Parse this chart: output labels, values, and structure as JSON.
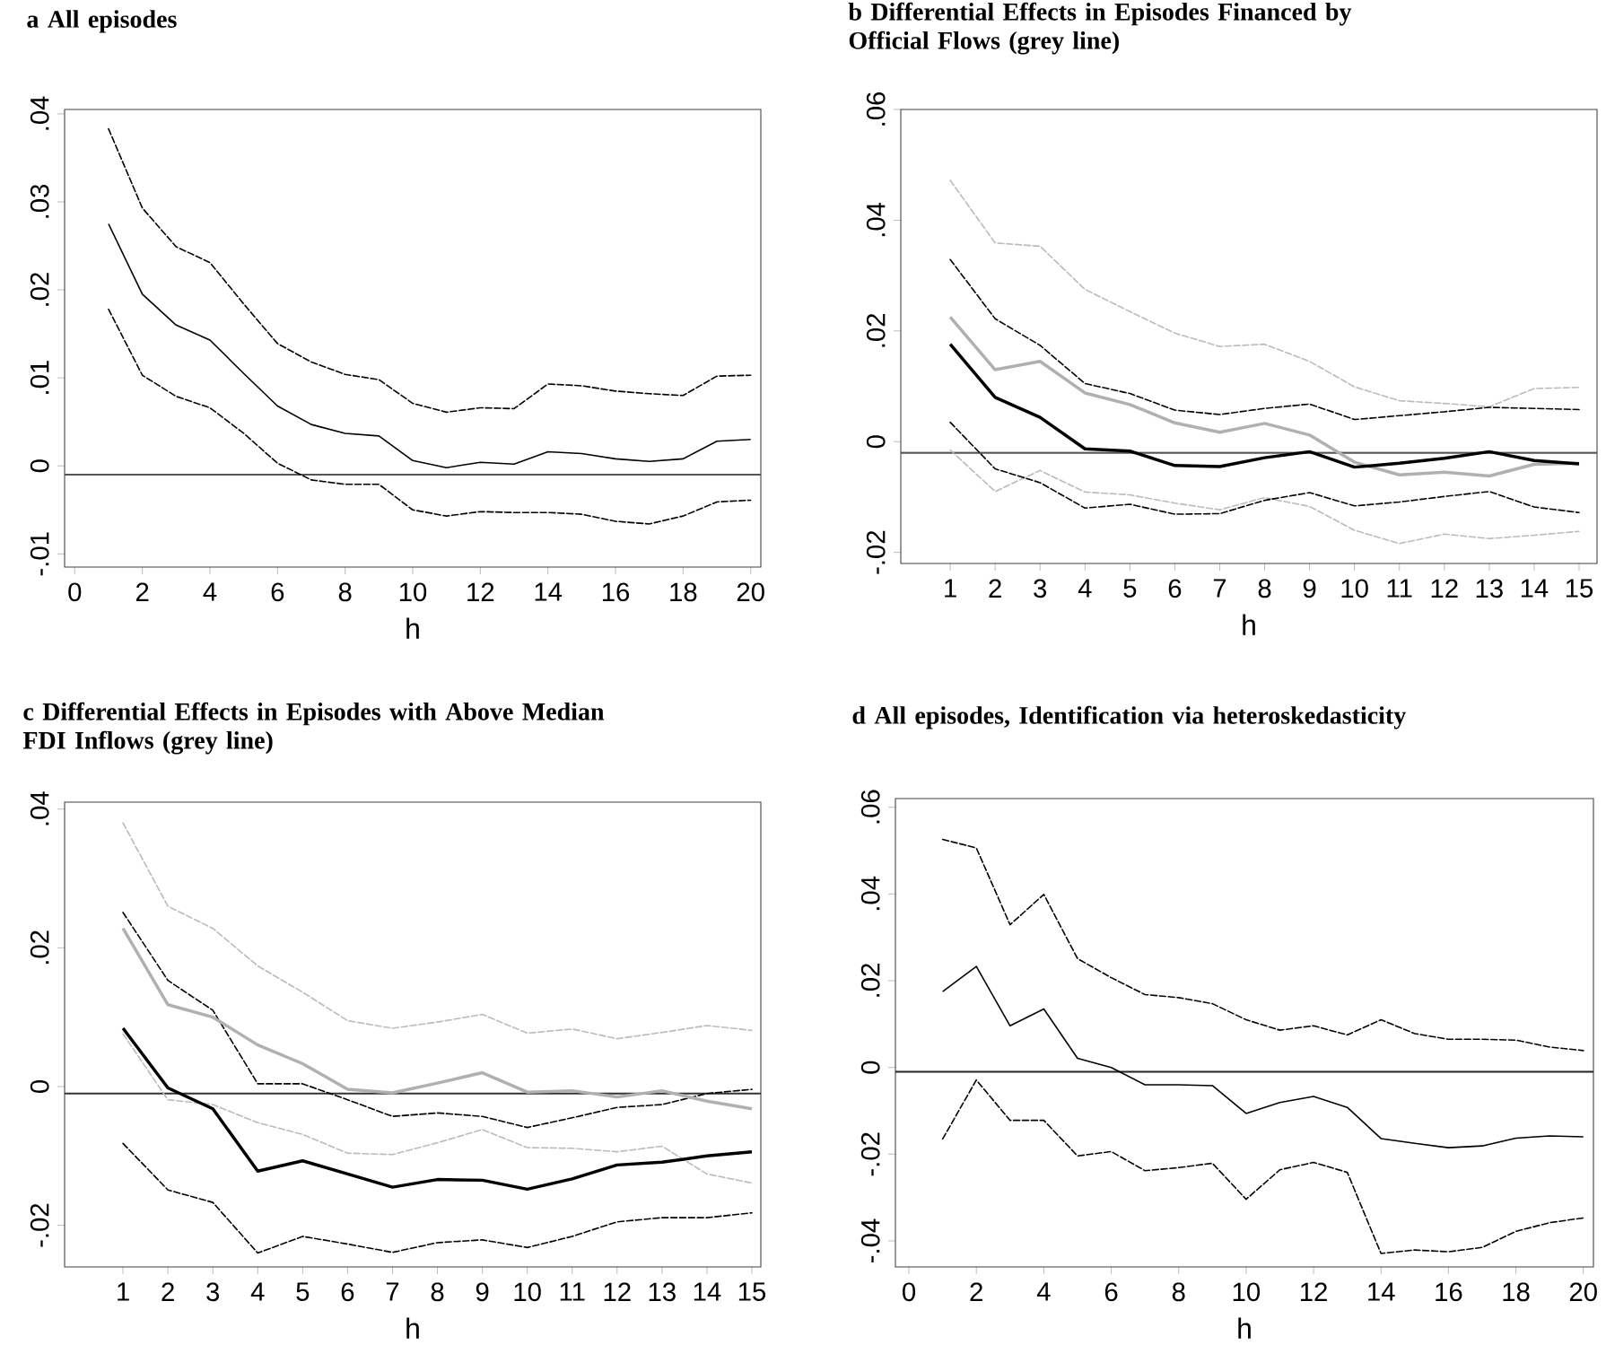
{
  "chart_data": [
    {
      "type": "line",
      "title": "a  All episodes",
      "xlabel": "h",
      "x": [
        1,
        2,
        3,
        4,
        5,
        6,
        7,
        8,
        9,
        10,
        11,
        12,
        13,
        14,
        15,
        16,
        17,
        18,
        19,
        20
      ],
      "xlim": [
        -0.3,
        20.3
      ],
      "xticks": [
        0,
        2,
        4,
        6,
        8,
        10,
        12,
        14,
        16,
        18,
        20
      ],
      "ylim": [
        -0.0115,
        0.0405
      ],
      "yticks": [
        {
          "value": -0.01,
          "label": "-.01"
        },
        {
          "value": 0,
          "label": "0"
        },
        {
          "value": 0.01,
          "label": ".01"
        },
        {
          "value": 0.02,
          "label": ".02"
        },
        {
          "value": 0.03,
          "label": ".03"
        },
        {
          "value": 0.04,
          "label": ".04"
        }
      ],
      "ref_lines": [
        {
          "axis": "y",
          "value": -0.001,
          "color": "#555555"
        }
      ],
      "series": [
        {
          "color": "#000000",
          "line_style": "dashed",
          "values": [
            0.0383,
            0.0293,
            0.0249,
            0.0231,
            0.0184,
            0.0139,
            0.0118,
            0.0104,
            0.0098,
            0.0071,
            0.0061,
            0.0066,
            0.0065,
            0.0093,
            0.0091,
            0.0085,
            0.0082,
            0.008,
            0.0102,
            0.0103
          ]
        },
        {
          "color": "#000000",
          "line_style": "solid",
          "values": [
            0.0275,
            0.0195,
            0.016,
            0.0143,
            0.0105,
            0.0068,
            0.0047,
            0.0037,
            0.0034,
            0.0006,
            -0.0002,
            0.0004,
            0.0002,
            0.0016,
            0.0014,
            0.0008,
            0.0005,
            0.0008,
            0.0028,
            0.003
          ]
        },
        {
          "color": "#000000",
          "line_style": "dashed",
          "values": [
            0.0178,
            0.0103,
            0.0079,
            0.0066,
            0.0037,
            0.0003,
            -0.0016,
            -0.0021,
            -0.0021,
            -0.005,
            -0.0057,
            -0.0052,
            -0.0053,
            -0.0053,
            -0.0055,
            -0.0063,
            -0.0066,
            -0.0057,
            -0.0041,
            -0.0039
          ]
        }
      ]
    },
    {
      "type": "line",
      "title": "b  Differential Effects in Episodes Financed by Official Flows (grey line)",
      "xlabel": "h",
      "x": [
        1,
        2,
        3,
        4,
        5,
        6,
        7,
        8,
        9,
        10,
        11,
        12,
        13,
        14,
        15
      ],
      "xlim": [
        -0.1,
        15.4
      ],
      "xticks": [
        1,
        2,
        3,
        4,
        5,
        6,
        7,
        8,
        9,
        10,
        11,
        12,
        13,
        14,
        15
      ],
      "ylim": [
        -0.022,
        0.06
      ],
      "yticks": [
        {
          "value": -0.02,
          "label": "-.02"
        },
        {
          "value": 0,
          "label": "0"
        },
        {
          "value": 0.02,
          "label": ".02"
        },
        {
          "value": 0.04,
          "label": ".04"
        },
        {
          "value": 0.06,
          "label": ".06"
        }
      ],
      "ref_lines": [
        {
          "axis": "y",
          "value": -0.002,
          "color": "#555555"
        }
      ],
      "series": [
        {
          "color": "#bbbbbb",
          "line_style": "dashed",
          "values": [
            0.0472,
            0.0359,
            0.0353,
            0.0275,
            0.0235,
            0.0196,
            0.0172,
            0.0176,
            0.0145,
            0.0099,
            0.0074,
            0.0069,
            0.0063,
            0.0096,
            0.0098
          ]
        },
        {
          "color": "#bbbbbb",
          "line_style": "dashed",
          "values": [
            -0.0015,
            -0.009,
            -0.0052,
            -0.0091,
            -0.0096,
            -0.0111,
            -0.0123,
            -0.0101,
            -0.0117,
            -0.016,
            -0.0184,
            -0.0167,
            -0.0175,
            -0.0169,
            -0.0162
          ]
        },
        {
          "color": "#000000",
          "line_style": "dashed",
          "values": [
            0.0329,
            0.0222,
            0.0174,
            0.0105,
            0.0087,
            0.0057,
            0.0049,
            0.006,
            0.0068,
            0.004,
            0.0047,
            0.0054,
            0.0062,
            0.006,
            0.0058
          ]
        },
        {
          "color": "#000000",
          "line_style": "dashed",
          "values": [
            0.0035,
            -0.0049,
            -0.0074,
            -0.012,
            -0.0113,
            -0.0131,
            -0.013,
            -0.0106,
            -0.0092,
            -0.0116,
            -0.0109,
            -0.0099,
            -0.009,
            -0.0118,
            -0.0128
          ]
        },
        {
          "color": "#b0b0b0",
          "line_style": "solid",
          "values": [
            0.0225,
            0.013,
            0.0145,
            0.0088,
            0.0067,
            0.0034,
            0.0017,
            0.0033,
            0.0012,
            -0.0037,
            -0.006,
            -0.0055,
            -0.0062,
            -0.0041,
            -0.0039
          ]
        },
        {
          "color": "#000000",
          "line_style": "solid",
          "values": [
            0.0176,
            0.008,
            0.0044,
            -0.0013,
            -0.0017,
            -0.0043,
            -0.0045,
            -0.0029,
            -0.0018,
            -0.0046,
            -0.0039,
            -0.003,
            -0.0018,
            -0.0034,
            -0.004
          ]
        }
      ]
    },
    {
      "type": "line",
      "title": "c  Differential Effects in Episodes with Above Median FDI Inflows (grey line)",
      "xlabel": "h",
      "x": [
        1,
        2,
        3,
        4,
        5,
        6,
        7,
        8,
        9,
        10,
        11,
        12,
        13,
        14,
        15
      ],
      "xlim": [
        -0.3,
        15.2
      ],
      "xticks": [
        1,
        2,
        3,
        4,
        5,
        6,
        7,
        8,
        9,
        10,
        11,
        12,
        13,
        14,
        15
      ],
      "ylim": [
        -0.026,
        0.041
      ],
      "yticks": [
        {
          "value": -0.02,
          "label": "-.02"
        },
        {
          "value": 0,
          "label": "0"
        },
        {
          "value": 0.02,
          "label": ".02"
        },
        {
          "value": 0.04,
          "label": ".04"
        }
      ],
      "ref_lines": [
        {
          "axis": "y",
          "value": -0.001,
          "color": "#333333"
        }
      ],
      "series": [
        {
          "color": "#bbbbbb",
          "line_style": "dashed",
          "values": [
            0.038,
            0.026,
            0.0228,
            0.0174,
            0.0136,
            0.0095,
            0.0084,
            0.0093,
            0.0104,
            0.0077,
            0.0083,
            0.0069,
            0.0078,
            0.0088,
            0.0081
          ]
        },
        {
          "color": "#bbbbbb",
          "line_style": "dashed",
          "values": [
            0.0076,
            -0.0019,
            -0.0026,
            -0.0052,
            -0.0069,
            -0.0096,
            -0.0098,
            -0.0081,
            -0.0062,
            -0.0088,
            -0.0089,
            -0.0094,
            -0.0086,
            -0.0126,
            -0.0139
          ]
        },
        {
          "color": "#000000",
          "line_style": "dashed",
          "values": [
            0.0251,
            0.0153,
            0.011,
            0.0004,
            0.0004,
            -0.0019,
            -0.0043,
            -0.0038,
            -0.0043,
            -0.0059,
            -0.0045,
            -0.003,
            -0.0026,
            -0.001,
            -0.0004
          ]
        },
        {
          "color": "#000000",
          "line_style": "dashed",
          "values": [
            -0.0082,
            -0.0149,
            -0.0167,
            -0.024,
            -0.0216,
            -0.0227,
            -0.0239,
            -0.0225,
            -0.0221,
            -0.0232,
            -0.0216,
            -0.0195,
            -0.0189,
            -0.0189,
            -0.0182
          ]
        },
        {
          "color": "#b0b0b0",
          "line_style": "solid",
          "values": [
            0.0228,
            0.0118,
            0.01,
            0.006,
            0.0033,
            -0.0004,
            -0.0009,
            0.0005,
            0.002,
            -0.0008,
            -0.0006,
            -0.0015,
            -0.0006,
            -0.0021,
            -0.0032
          ]
        },
        {
          "color": "#000000",
          "line_style": "solid",
          "values": [
            0.0084,
            -0.0002,
            -0.0032,
            -0.0122,
            -0.0107,
            -0.0126,
            -0.0145,
            -0.0134,
            -0.0135,
            -0.0148,
            -0.0133,
            -0.0113,
            -0.0109,
            -0.01,
            -0.0094
          ]
        }
      ]
    },
    {
      "type": "line",
      "title": "d  All episodes, Identification via heteroskedasticity",
      "xlabel": "h",
      "x": [
        1,
        2,
        3,
        4,
        5,
        6,
        7,
        8,
        9,
        10,
        11,
        12,
        13,
        14,
        15,
        16,
        17,
        18,
        19,
        20
      ],
      "xlim": [
        -0.4,
        20.3
      ],
      "xticks": [
        0,
        2,
        4,
        6,
        8,
        10,
        12,
        14,
        16,
        18,
        20
      ],
      "ylim": [
        -0.046,
        0.062
      ],
      "yticks": [
        {
          "value": -0.04,
          "label": "-.04"
        },
        {
          "value": -0.02,
          "label": "-.02"
        },
        {
          "value": 0,
          "label": "0"
        },
        {
          "value": 0.02,
          "label": ".02"
        },
        {
          "value": 0.04,
          "label": ".04"
        },
        {
          "value": 0.06,
          "label": ".06"
        }
      ],
      "ref_lines": [
        {
          "axis": "y",
          "value": -0.001,
          "color": "#222222"
        }
      ],
      "series": [
        {
          "color": "#000000",
          "line_style": "dashed",
          "values": [
            0.0526,
            0.0506,
            0.0329,
            0.0399,
            0.0251,
            0.0207,
            0.0168,
            0.0161,
            0.0147,
            0.011,
            0.0086,
            0.0096,
            0.0075,
            0.011,
            0.0078,
            0.0065,
            0.0065,
            0.0063,
            0.0047,
            0.0039
          ]
        },
        {
          "color": "#000000",
          "line_style": "solid",
          "values": [
            0.0175,
            0.0233,
            0.0096,
            0.0135,
            0.0021,
            0,
            -0.004,
            -0.004,
            -0.0042,
            -0.0106,
            -0.0081,
            -0.0067,
            -0.0092,
            -0.0164,
            -0.0175,
            -0.0185,
            -0.0181,
            -0.0163,
            -0.0158,
            -0.016
          ]
        },
        {
          "color": "#000000",
          "line_style": "dashed",
          "values": [
            -0.0165,
            -0.0029,
            -0.0122,
            -0.0122,
            -0.0204,
            -0.0194,
            -0.0238,
            -0.0231,
            -0.0221,
            -0.0304,
            -0.0236,
            -0.0219,
            -0.0242,
            -0.0429,
            -0.0421,
            -0.0425,
            -0.0415,
            -0.0378,
            -0.0358,
            -0.0347
          ]
        }
      ]
    }
  ]
}
